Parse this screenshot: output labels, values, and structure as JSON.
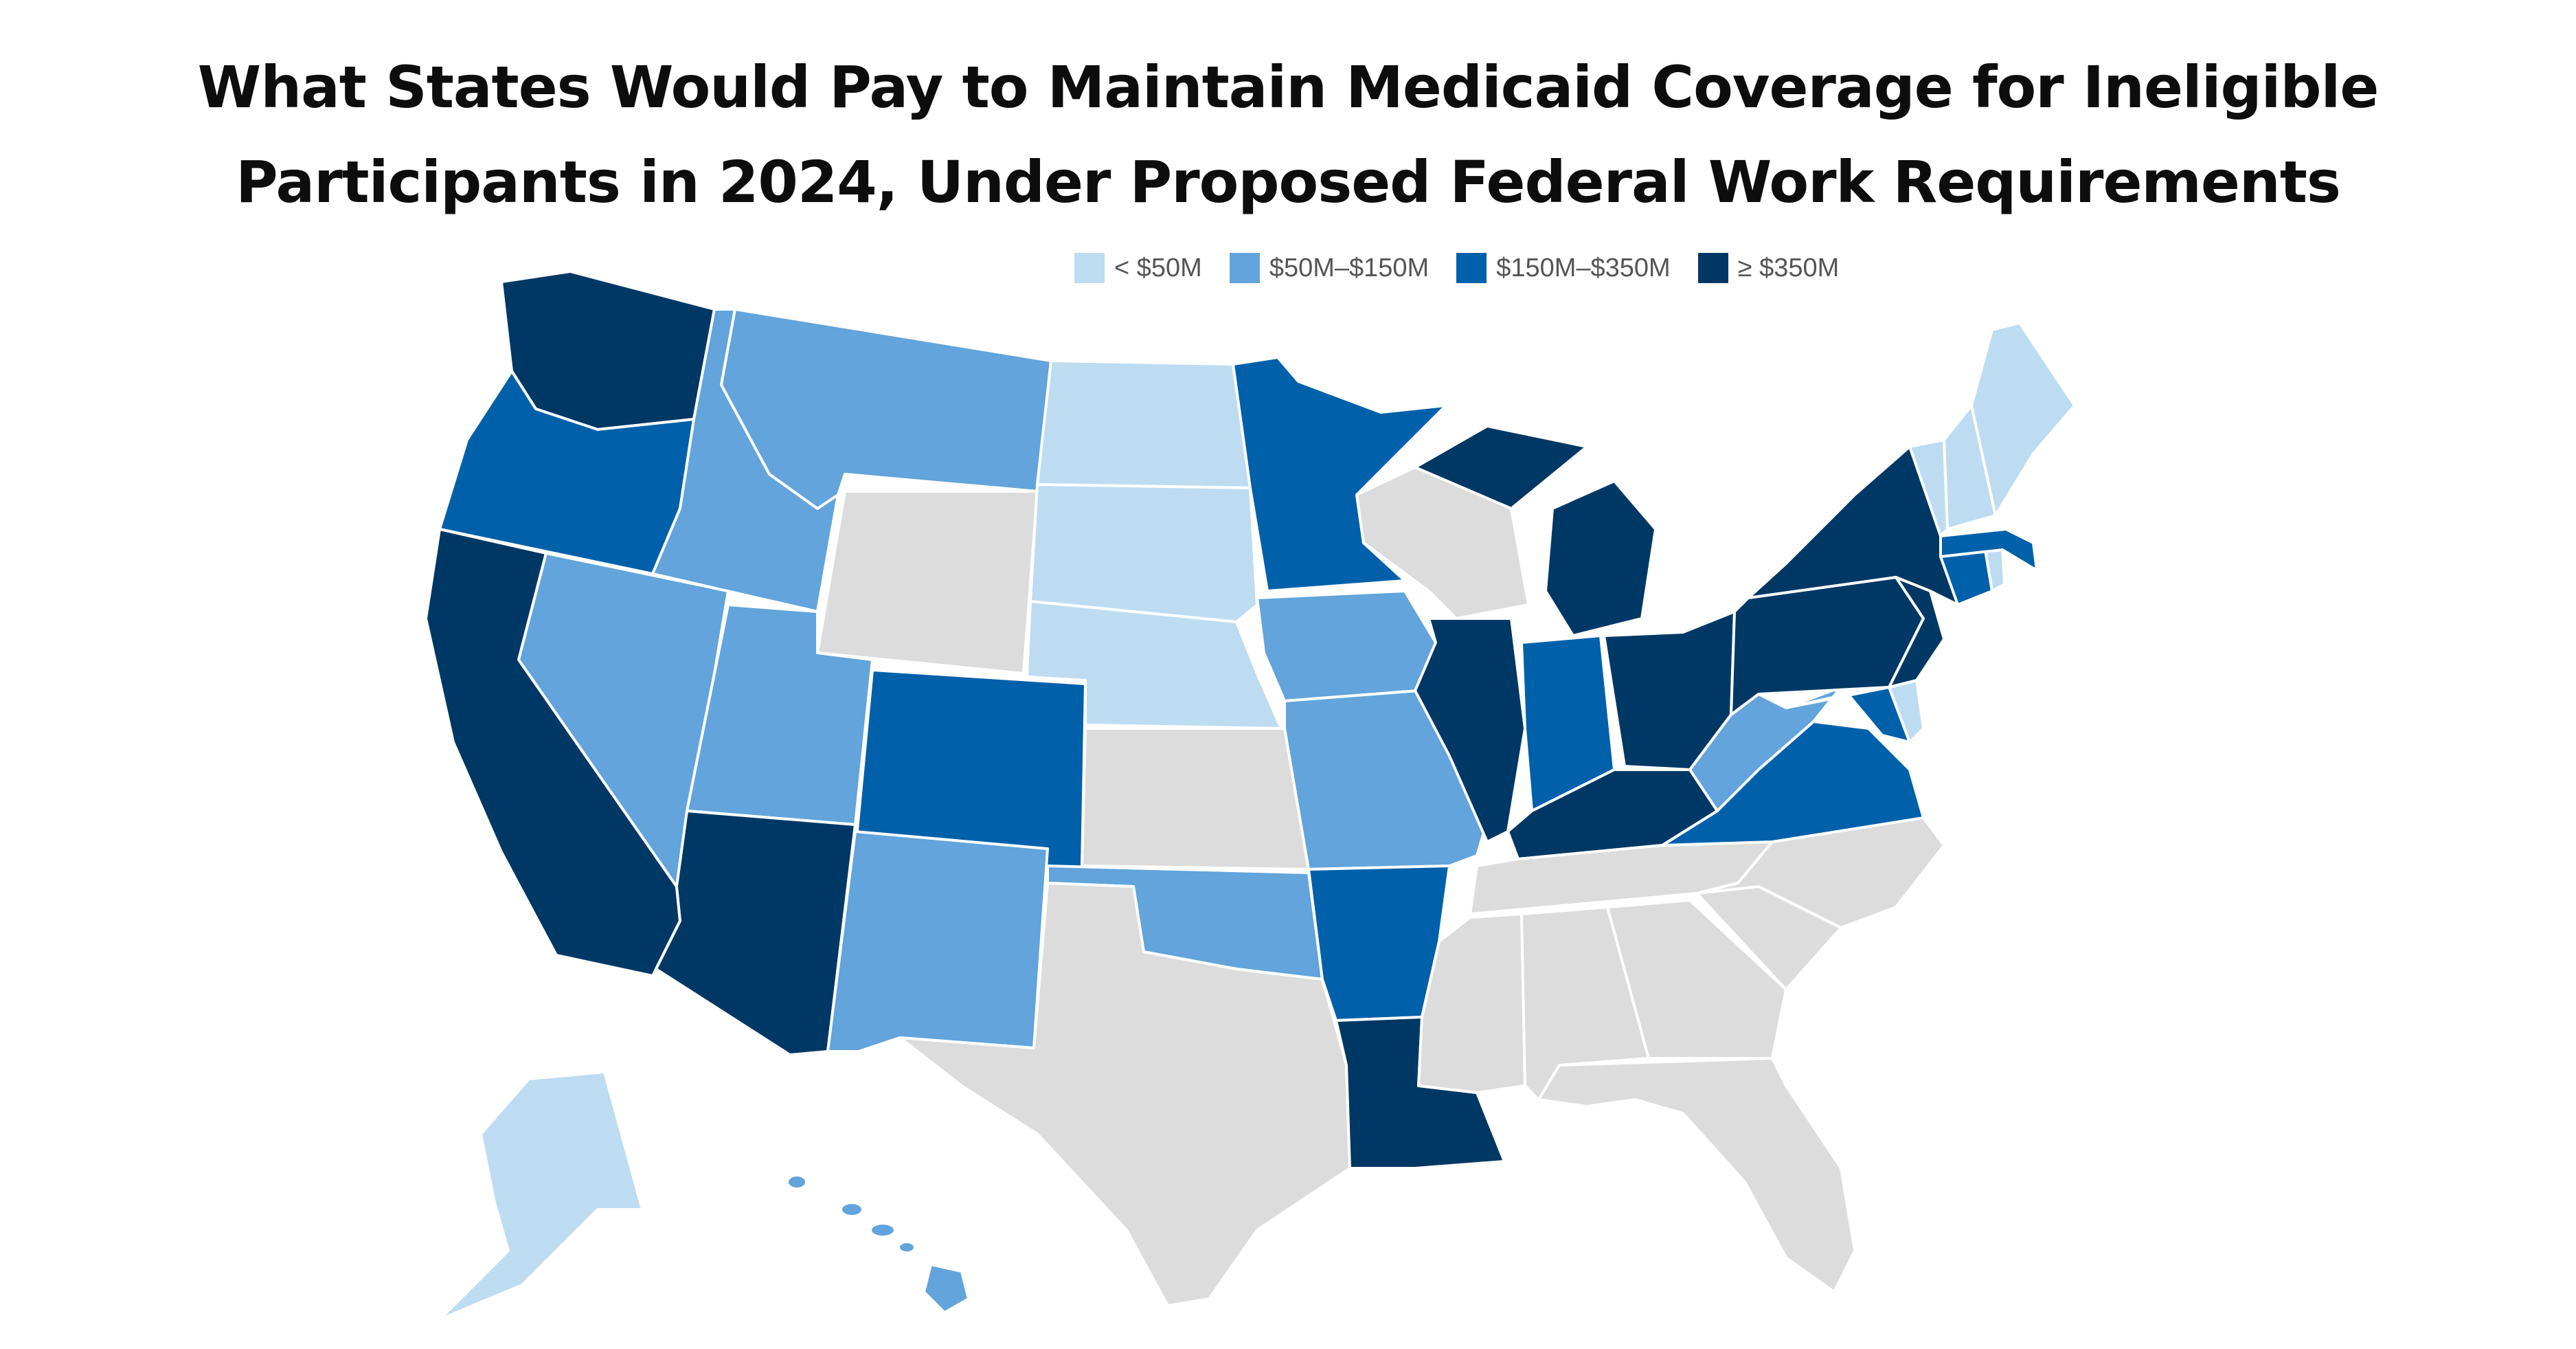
{
  "title": {
    "line1": "What States Would Pay to Maintain Medicaid Coverage for Ineligible",
    "line2": "Participants in 2024, Under Proposed Federal Work Requirements"
  },
  "legend": [
    {
      "label": "< $50M",
      "color": "#bddcf2"
    },
    {
      "label": "$50M–$150M",
      "color": "#62a4db"
    },
    {
      "label": "$150M–$350M",
      "color": "#0060aa"
    },
    {
      "label": "≥ $350M",
      "color": "#003865"
    }
  ],
  "no_data_color": "#dcdcdc",
  "states": {
    "WA": "≥ $350M",
    "OR": "$150M–$350M",
    "CA": "≥ $350M",
    "NV": "$50M–$150M",
    "ID": "$50M–$150M",
    "MT": "$50M–$150M",
    "WY": "none",
    "UT": "$50M–$150M",
    "AZ": "≥ $350M",
    "CO": "$150M–$350M",
    "NM": "$50M–$150M",
    "ND": "< $50M",
    "SD": "< $50M",
    "NE": "< $50M",
    "KS": "none",
    "OK": "$50M–$150M",
    "TX": "none",
    "MN": "$150M–$350M",
    "IA": "$50M–$150M",
    "MO": "$50M–$150M",
    "AR": "$150M–$350M",
    "LA": "≥ $350M",
    "WI": "none",
    "IL": "≥ $350M",
    "MI": "≥ $350M",
    "IN": "$150M–$350M",
    "OH": "≥ $350M",
    "KY": "≥ $350M",
    "TN": "none",
    "MS": "none",
    "AL": "none",
    "GA": "none",
    "FL": "none",
    "SC": "none",
    "NC": "none",
    "VA": "$150M–$350M",
    "WV": "$50M–$150M",
    "MD": "$150M–$350M",
    "DE": "< $50M",
    "PA": "≥ $350M",
    "NJ": "≥ $350M",
    "NY": "≥ $350M",
    "CT": "$150M–$350M",
    "RI": "< $50M",
    "MA": "$150M–$350M",
    "VT": "< $50M",
    "NH": "< $50M",
    "ME": "< $50M",
    "AK": "< $50M",
    "HI": "$50M–$150M"
  }
}
